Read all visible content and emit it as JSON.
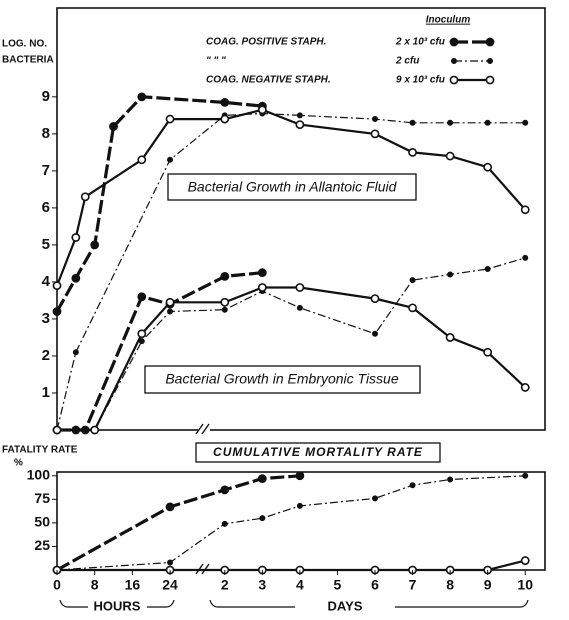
{
  "chart_data": [
    {
      "type": "line",
      "y_label_lines": [
        "LOG. NO.",
        "BACTERIA"
      ],
      "legend_title": "Inoculum",
      "annotations": [
        "Bacterial Growth in Allantoic Fluid",
        "Bacterial Growth in Embryonic Tissue"
      ],
      "ylim": [
        0,
        11.4
      ],
      "yticks": [
        1,
        2,
        3,
        4,
        5,
        6,
        7,
        8,
        9
      ],
      "series": [
        {
          "name": "COAG. POSITIVE STAPH.",
          "dose": "2 x 10³ cfu",
          "line": "dashed",
          "marker": "filled",
          "color": "#111",
          "fluid": {
            "hours": {
              "x": [
                0,
                4,
                8,
                12,
                18
              ],
              "values": [
                3.2,
                4.1,
                5.0,
                8.2,
                9.0
              ]
            },
            "days": {
              "x": [
                2,
                3
              ],
              "values": [
                8.85,
                8.75
              ]
            }
          },
          "tissue": {
            "hours": {
              "x": [
                0,
                4,
                6,
                18,
                24
              ],
              "values": [
                0,
                0,
                0,
                3.6,
                3.4
              ]
            },
            "days": {
              "x": [
                2,
                3
              ],
              "values": [
                4.15,
                4.25
              ]
            }
          }
        },
        {
          "name": "\"        \"        \"",
          "dose": "2 cfu",
          "line": "dashdot",
          "marker": "small",
          "color": "#111",
          "fluid": {
            "hours": {
              "x": [
                0,
                4,
                24
              ],
              "values": [
                0,
                2.1,
                7.3
              ]
            },
            "days": {
              "x": [
                2,
                3,
                4,
                6,
                7,
                8,
                9,
                10
              ],
              "values": [
                8.5,
                8.55,
                8.5,
                8.4,
                8.3,
                8.3,
                8.3,
                8.3
              ]
            }
          },
          "tissue": {
            "hours": {
              "x": [
                0,
                8,
                18,
                24
              ],
              "values": [
                0,
                0,
                2.4,
                3.2
              ]
            },
            "days": {
              "x": [
                2,
                3,
                4,
                6,
                7,
                8,
                9,
                10
              ],
              "values": [
                3.25,
                3.75,
                3.3,
                2.6,
                4.05,
                4.2,
                4.35,
                4.65
              ]
            }
          }
        },
        {
          "name": "COAG. NEGATIVE STAPH.",
          "dose": "9 x 10³ cfu",
          "line": "solid",
          "marker": "open",
          "color": "#111",
          "fluid": {
            "hours": {
              "x": [
                0,
                4,
                6,
                18,
                24
              ],
              "values": [
                3.9,
                5.2,
                6.3,
                7.3,
                8.4
              ]
            },
            "days": {
              "x": [
                2,
                3,
                4,
                6,
                7,
                8,
                9,
                10
              ],
              "values": [
                8.4,
                8.65,
                8.25,
                8.0,
                7.5,
                7.4,
                7.1,
                5.95
              ]
            }
          },
          "tissue": {
            "hours": {
              "x": [
                0,
                8,
                18,
                24
              ],
              "values": [
                0,
                0,
                2.6,
                3.45
              ]
            },
            "days": {
              "x": [
                2,
                3,
                4,
                6,
                7,
                8,
                9,
                10
              ],
              "values": [
                3.45,
                3.85,
                3.85,
                3.55,
                3.3,
                2.5,
                2.1,
                1.15
              ]
            }
          }
        }
      ]
    },
    {
      "type": "line",
      "y_label_lines": [
        "FATALITY RATE",
        "%"
      ],
      "title": "CUMULATIVE MORTALITY RATE",
      "ylim": [
        0,
        104
      ],
      "yticks": [
        25,
        50,
        75,
        100
      ],
      "x_segments": [
        {
          "label": "HOURS",
          "xlim": [
            0,
            27
          ],
          "xticks": [
            0,
            8,
            16,
            24
          ]
        },
        {
          "label": "DAYS",
          "xlim": [
            1.5,
            10.5
          ],
          "xticks": [
            2,
            3,
            4,
            5,
            6,
            7,
            8,
            9,
            10
          ]
        }
      ],
      "series": [
        {
          "line": "dashed",
          "marker": "filled",
          "color": "#111",
          "mortality": {
            "hours": {
              "x": [
                0,
                24
              ],
              "values": [
                0,
                67
              ]
            },
            "days": {
              "x": [
                2,
                3,
                4
              ],
              "values": [
                85,
                97,
                100
              ]
            }
          }
        },
        {
          "line": "dashdot",
          "marker": "small",
          "color": "#111",
          "mortality": {
            "hours": {
              "x": [
                0,
                24
              ],
              "values": [
                0,
                8
              ]
            },
            "days": {
              "x": [
                2,
                3,
                4,
                6,
                7,
                8,
                10
              ],
              "values": [
                49,
                55,
                68,
                76,
                90,
                96,
                100
              ]
            }
          }
        },
        {
          "line": "solid",
          "marker": "open",
          "color": "#111",
          "mortality": {
            "hours": {
              "x": [
                0,
                24
              ],
              "values": [
                0,
                0
              ]
            },
            "days": {
              "x": [
                2,
                3,
                4,
                6,
                7,
                8,
                9,
                10
              ],
              "values": [
                0,
                0,
                0,
                0,
                0,
                0,
                0,
                10
              ]
            }
          }
        }
      ]
    }
  ]
}
